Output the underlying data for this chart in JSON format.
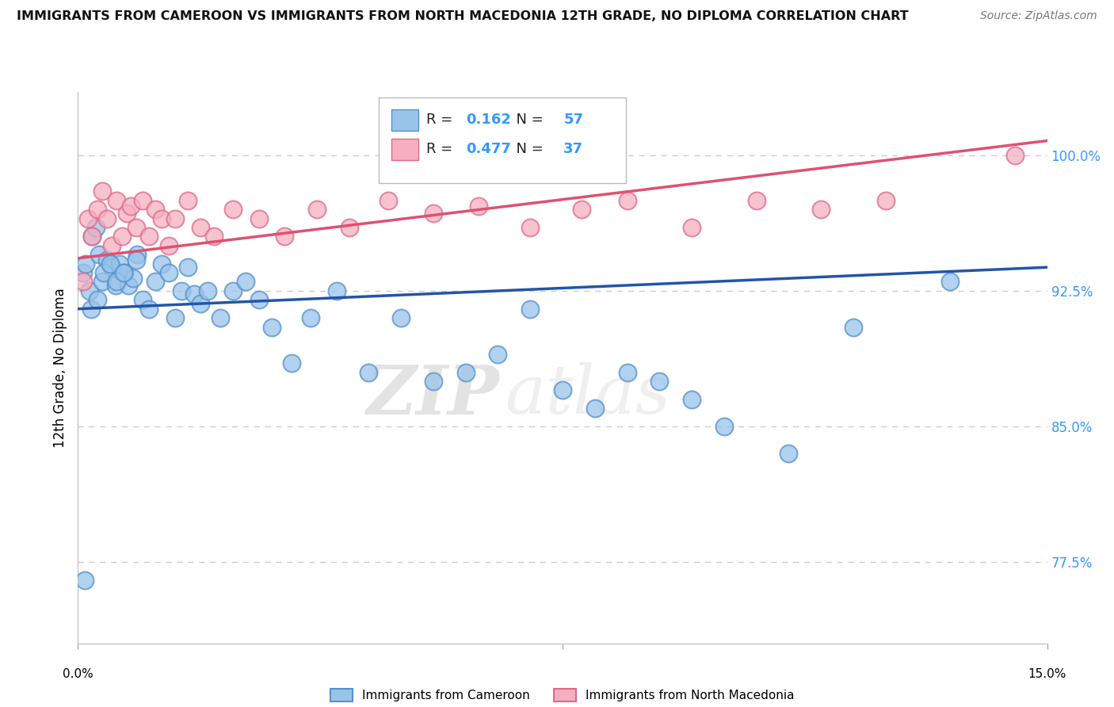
{
  "title": "IMMIGRANTS FROM CAMEROON VS IMMIGRANTS FROM NORTH MACEDONIA 12TH GRADE, NO DIPLOMA CORRELATION CHART",
  "source": "Source: ZipAtlas.com",
  "ylabel": "12th Grade, No Diploma",
  "xlim": [
    0.0,
    15.0
  ],
  "ylim": [
    73.0,
    103.5
  ],
  "yticks": [
    77.5,
    85.0,
    92.5,
    100.0
  ],
  "ytick_labels": [
    "77.5%",
    "85.0%",
    "92.5%",
    "100.0%"
  ],
  "watermark_zip": "ZIP",
  "watermark_atlas": "atlas",
  "cam_color": "#99c4ea",
  "cam_edge": "#5590cc",
  "mac_color": "#f5afc0",
  "mac_edge": "#e06888",
  "trend_cam_color": "#2255aa",
  "trend_cam_y0": 91.5,
  "trend_cam_y1": 93.8,
  "trend_mac_color": "#e05070",
  "trend_mac_y0": 94.3,
  "trend_mac_y1": 100.8,
  "cam_x": [
    0.08,
    0.12,
    0.18,
    0.22,
    0.28,
    0.32,
    0.38,
    0.45,
    0.52,
    0.58,
    0.65,
    0.72,
    0.78,
    0.85,
    0.92,
    1.0,
    1.1,
    1.2,
    1.3,
    1.4,
    1.5,
    1.6,
    1.7,
    1.8,
    1.9,
    2.0,
    2.2,
    2.4,
    2.6,
    2.8,
    3.0,
    3.3,
    3.6,
    4.0,
    4.5,
    5.0,
    5.5,
    6.0,
    6.5,
    7.0,
    7.5,
    8.0,
    8.5,
    9.0,
    9.5,
    10.0,
    11.0,
    12.0,
    13.5,
    0.1,
    0.2,
    0.3,
    0.4,
    0.5,
    0.6,
    0.7,
    0.9
  ],
  "cam_y": [
    93.5,
    94.0,
    92.5,
    95.5,
    96.0,
    94.5,
    93.0,
    94.2,
    93.8,
    92.8,
    94.0,
    93.5,
    92.8,
    93.2,
    94.5,
    92.0,
    91.5,
    93.0,
    94.0,
    93.5,
    91.0,
    92.5,
    93.8,
    92.3,
    91.8,
    92.5,
    91.0,
    92.5,
    93.0,
    92.0,
    90.5,
    88.5,
    91.0,
    92.5,
    88.0,
    91.0,
    87.5,
    88.0,
    89.0,
    91.5,
    87.0,
    86.0,
    88.0,
    87.5,
    86.5,
    85.0,
    83.5,
    90.5,
    93.0,
    76.5,
    91.5,
    92.0,
    93.5,
    94.0,
    93.0,
    93.5,
    94.2
  ],
  "mac_x": [
    0.08,
    0.15,
    0.22,
    0.3,
    0.38,
    0.45,
    0.52,
    0.6,
    0.68,
    0.75,
    0.82,
    0.9,
    1.0,
    1.1,
    1.2,
    1.3,
    1.4,
    1.5,
    1.7,
    1.9,
    2.1,
    2.4,
    2.8,
    3.2,
    3.7,
    4.2,
    4.8,
    5.5,
    6.2,
    7.0,
    7.8,
    8.5,
    9.5,
    10.5,
    11.5,
    12.5,
    14.5
  ],
  "mac_y": [
    93.0,
    96.5,
    95.5,
    97.0,
    98.0,
    96.5,
    95.0,
    97.5,
    95.5,
    96.8,
    97.2,
    96.0,
    97.5,
    95.5,
    97.0,
    96.5,
    95.0,
    96.5,
    97.5,
    96.0,
    95.5,
    97.0,
    96.5,
    95.5,
    97.0,
    96.0,
    97.5,
    96.8,
    97.2,
    96.0,
    97.0,
    97.5,
    96.0,
    97.5,
    97.0,
    97.5,
    100.0
  ],
  "legend_cam_R": "0.162",
  "legend_cam_N": "57",
  "legend_mac_R": "0.477",
  "legend_mac_N": "37",
  "blue_text_color": "#3399ff",
  "bottom_legend": [
    {
      "label": "Immigrants from Cameroon",
      "color": "#99c4ea",
      "edge": "#5590cc"
    },
    {
      "label": "Immigrants from North Macedonia",
      "color": "#f5afc0",
      "edge": "#e06888"
    }
  ]
}
